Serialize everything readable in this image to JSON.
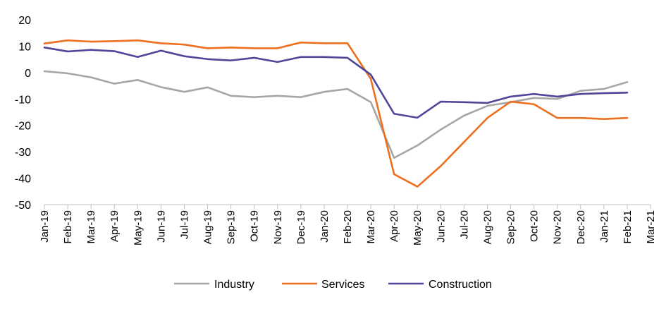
{
  "chart_data": {
    "type": "line",
    "title": "",
    "xlabel": "",
    "ylabel": "",
    "ylim": [
      -50,
      20
    ],
    "yticks": [
      20,
      10,
      0,
      -10,
      -20,
      -30,
      -40,
      -50
    ],
    "grid": false,
    "legend_position": "bottom",
    "categories": [
      "Jan-19",
      "Feb-19",
      "Mar-19",
      "Apr-19",
      "May-19",
      "Jun-19",
      "Jul-19",
      "Aug-19",
      "Sep-19",
      "Oct-19",
      "Nov-19",
      "Dec-19",
      "Jan-20",
      "Feb-20",
      "Mar-20",
      "Apr-20",
      "May-20",
      "Jun-20",
      "Jul-20",
      "Aug-20",
      "Sep-20",
      "Oct-20",
      "Nov-20",
      "Dec-20",
      "Jan-21",
      "Feb-21",
      "Mar-21"
    ],
    "series": [
      {
        "name": "Industry",
        "color": "#a6a6a6",
        "values": [
          0.5,
          -0.3,
          -1.8,
          -4.2,
          -2.8,
          -5.5,
          -7.3,
          -5.6,
          -8.8,
          -9.3,
          -8.8,
          -9.3,
          -7.3,
          -6.2,
          -11.2,
          -32.3,
          -27.6,
          -21.6,
          -16.3,
          -12.6,
          -11.2,
          -9.6,
          -10.0,
          -6.9,
          -6.2,
          -3.6,
          null
        ]
      },
      {
        "name": "Services",
        "color": "#ed6f1f",
        "values": [
          11.0,
          12.2,
          11.7,
          11.9,
          12.2,
          11.1,
          10.6,
          9.2,
          9.5,
          9.2,
          9.2,
          11.4,
          11.1,
          11.1,
          -2.4,
          -38.5,
          -43.2,
          -35.4,
          -26.3,
          -17.2,
          -11.0,
          -12.0,
          -17.2,
          -17.2,
          -17.6,
          -17.2,
          null
        ]
      },
      {
        "name": "Construction",
        "color": "#4e4699",
        "values": [
          9.5,
          8.0,
          8.6,
          8.1,
          5.9,
          8.3,
          6.2,
          5.1,
          4.6,
          5.6,
          4.0,
          5.9,
          5.9,
          5.6,
          -0.8,
          -15.6,
          -17.1,
          -11.0,
          -11.2,
          -11.5,
          -9.1,
          -8.1,
          -9.1,
          -8.1,
          -7.8,
          -7.6,
          null
        ]
      }
    ]
  }
}
